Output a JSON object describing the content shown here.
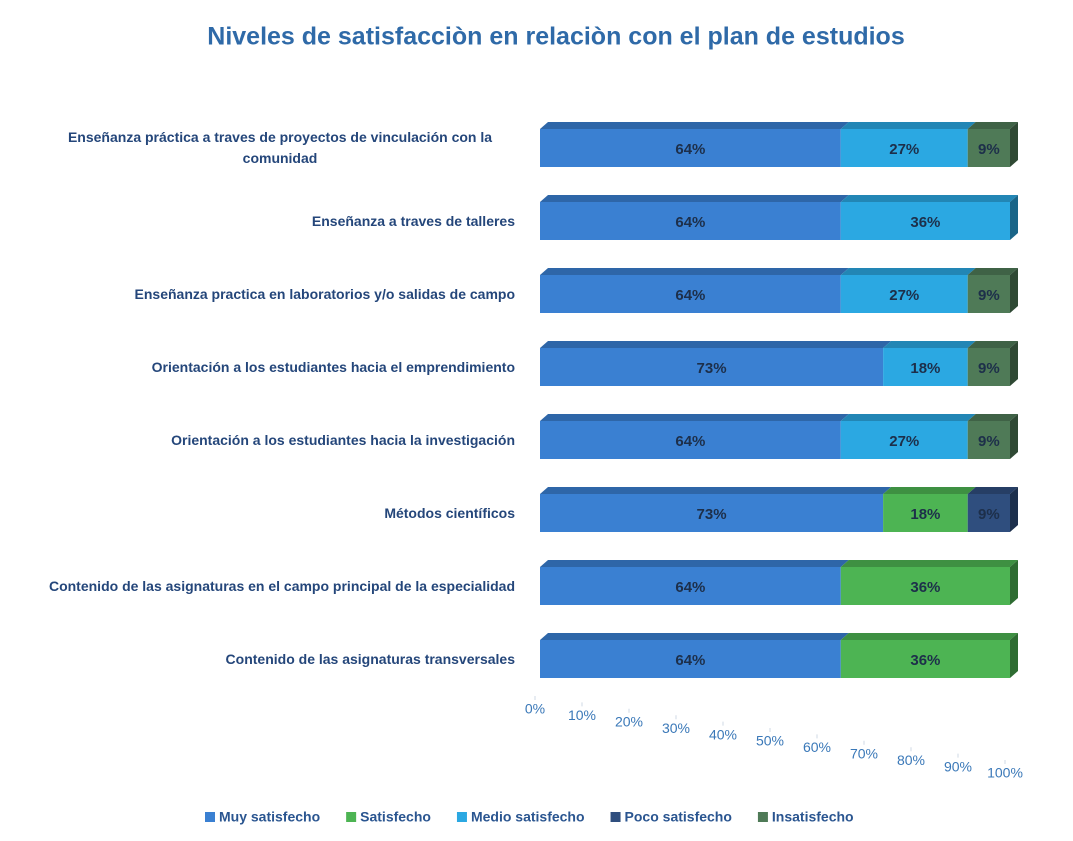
{
  "chart_data": {
    "type": "bar",
    "orientation": "horizontal",
    "stacked": true,
    "title": "Niveles de satisfacciòn en relaciòn con el plan de estudios",
    "categories": [
      "Enseñanza práctica a traves de proyectos de vinculación con la comunidad",
      "Enseñanza a traves de talleres",
      "Enseñanza practica en laboratorios y/o salidas de campo",
      "Orientación a los estudiantes hacia el emprendimiento",
      "Orientación a los estudiantes hacia la investigación",
      "Métodos científicos",
      "Contenido de las asignaturas en el campo principal de la especialidad",
      "Contenido de las asignaturas transversales"
    ],
    "series": [
      {
        "name": "Muy satisfecho",
        "color": "#3a80d2",
        "values": [
          64,
          64,
          64,
          73,
          64,
          73,
          64,
          64
        ],
        "value_labels": [
          "64%",
          "64%",
          "64%",
          "73%",
          "64%",
          "73%",
          "64%",
          "64%"
        ]
      },
      {
        "name": "Satisfecho",
        "color": "#4db453",
        "values": [
          null,
          null,
          null,
          null,
          null,
          18,
          36,
          36
        ],
        "value_labels": [
          null,
          null,
          null,
          null,
          null,
          "18%",
          "36%",
          "36%"
        ]
      },
      {
        "name": "Medio satisfecho",
        "color": "#2ba8e2",
        "values": [
          27,
          36,
          27,
          18,
          27,
          null,
          null,
          null
        ],
        "value_labels": [
          "27%",
          "36%",
          "27%",
          "18%",
          "27%",
          null,
          null,
          null
        ]
      },
      {
        "name": "Poco satisfecho",
        "color": "#2f4e7e",
        "values": [
          null,
          null,
          null,
          null,
          null,
          9,
          null,
          null
        ],
        "value_labels": [
          null,
          null,
          null,
          null,
          null,
          "9%",
          null,
          null
        ]
      },
      {
        "name": "Insatisfecho",
        "color": "#4f7a57",
        "values": [
          9,
          null,
          9,
          9,
          9,
          null,
          null,
          null
        ],
        "value_labels": [
          "9%",
          null,
          "9%",
          "9%",
          "9%",
          null,
          null,
          null
        ]
      }
    ],
    "xlim": [
      0,
      100
    ],
    "xticks": [
      {
        "value": 0,
        "label": "0%"
      },
      {
        "value": 10,
        "label": "10%"
      },
      {
        "value": 20,
        "label": "20%"
      },
      {
        "value": 30,
        "label": "30%"
      },
      {
        "value": 40,
        "label": "40%"
      },
      {
        "value": 50,
        "label": "50%"
      },
      {
        "value": 60,
        "label": "60%"
      },
      {
        "value": 70,
        "label": "70%"
      },
      {
        "value": 80,
        "label": "80%"
      },
      {
        "value": 90,
        "label": "90%"
      },
      {
        "value": 100,
        "label": "100%"
      }
    ],
    "legend": "bottom"
  }
}
